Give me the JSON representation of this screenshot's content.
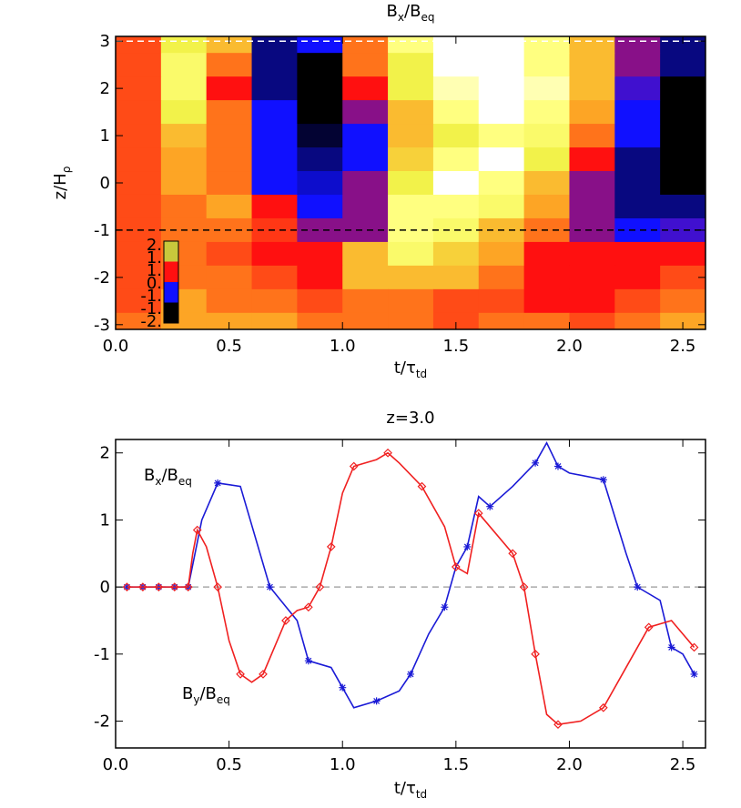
{
  "chart_data": [
    {
      "type": "heatmap",
      "title": [
        "B",
        "x",
        "/B",
        "eq"
      ],
      "xlabel": [
        "t/τ",
        "td"
      ],
      "ylabel": [
        "z/H",
        "ρ"
      ],
      "xlim": [
        0,
        2.6
      ],
      "ylim": [
        -3.1,
        3.1
      ],
      "xticks": [
        {
          "value": 0,
          "label": "0.0"
        },
        {
          "value": 0.5,
          "label": "0.5"
        },
        {
          "value": 1,
          "label": "1.0"
        },
        {
          "value": 1.5,
          "label": "1.5"
        },
        {
          "value": 2,
          "label": "2.0"
        },
        {
          "value": 2.5,
          "label": "2.5"
        }
      ],
      "yticks": [
        -3,
        -2,
        -1,
        0,
        1,
        2,
        3
      ],
      "x": [
        0.1,
        0.3,
        0.5,
        0.7,
        0.9,
        1.1,
        1.3,
        1.5,
        1.7,
        1.9,
        2.1,
        2.3,
        2.5
      ],
      "y": [
        3,
        2.5,
        2,
        1.5,
        1,
        0.5,
        0,
        -0.5,
        -1,
        -1.5,
        -2,
        -2.5,
        -3
      ],
      "values": [
        [
          0.3,
          1.5,
          1.0,
          -1.5,
          -1.0,
          0.5,
          2.0,
          2.5,
          2.5,
          2.0,
          1.0,
          -0.5,
          -1.5
        ],
        [
          0.3,
          1.8,
          0.5,
          -1.5,
          -2.0,
          0.5,
          1.5,
          2.5,
          2.5,
          2.0,
          1.0,
          -0.5,
          -1.5
        ],
        [
          0.3,
          1.8,
          0.0,
          -1.5,
          -2.0,
          0.0,
          1.5,
          2.2,
          2.5,
          2.2,
          1.0,
          -0.8,
          -2.0
        ],
        [
          0.3,
          1.5,
          0.5,
          -1.0,
          -2.0,
          -0.5,
          1.0,
          2.0,
          2.5,
          2.0,
          0.8,
          -1.0,
          -2.0
        ],
        [
          0.3,
          1.0,
          0.5,
          -1.0,
          -1.8,
          -1.0,
          1.0,
          1.5,
          2.0,
          1.8,
          0.5,
          -1.0,
          -2.0
        ],
        [
          0.3,
          0.8,
          0.5,
          -1.0,
          -1.5,
          -1.0,
          1.2,
          2.0,
          2.5,
          1.5,
          0.0,
          -1.5,
          -2.0
        ],
        [
          0.3,
          0.8,
          0.5,
          -1.0,
          -1.2,
          -0.5,
          1.5,
          2.5,
          2.0,
          1.0,
          -0.5,
          -1.5,
          -2.0
        ],
        [
          0.3,
          0.5,
          0.8,
          0.0,
          -1.0,
          -0.5,
          2.0,
          2.0,
          1.8,
          0.8,
          -0.5,
          -1.5,
          -1.5
        ],
        [
          0.3,
          0.5,
          0.5,
          0.2,
          -0.5,
          -0.5,
          2.0,
          1.8,
          1.0,
          0.5,
          -0.5,
          -1.0,
          -0.8
        ],
        [
          0.3,
          0.5,
          0.3,
          0.0,
          0.0,
          1.0,
          1.8,
          1.2,
          0.8,
          0.0,
          0.0,
          0.0,
          0.0
        ],
        [
          0.3,
          0.5,
          0.5,
          0.3,
          0.0,
          1.0,
          1.0,
          1.0,
          0.5,
          0.0,
          0.0,
          0.0,
          0.3
        ],
        [
          0.3,
          0.8,
          0.5,
          0.5,
          0.3,
          0.5,
          0.5,
          0.3,
          0.3,
          0.0,
          0.0,
          0.3,
          0.5
        ],
        [
          0.5,
          0.8,
          0.8,
          0.8,
          0.5,
          0.5,
          0.5,
          0.3,
          0.5,
          0.5,
          0.3,
          0.5,
          0.8
        ]
      ],
      "colormap": [
        [
          -2,
          "#000000"
        ],
        [
          -1,
          "#1010ff"
        ],
        [
          0,
          "#ff1010"
        ],
        [
          0.7,
          "#ff9a20"
        ],
        [
          1.5,
          "#f2f24a"
        ],
        [
          2,
          "#ffff80"
        ],
        [
          2.5,
          "#ffffff"
        ]
      ],
      "colorbar_colors": [
        "#c8c83c",
        "#ff1010",
        "#1010ff",
        "#000000"
      ],
      "colorbar_labels": [
        "2.",
        "1.",
        "1.",
        "0.",
        "-1.",
        "-1.",
        "-2."
      ],
      "hlines": [
        {
          "value": 3,
          "color": "#ffffff"
        },
        {
          "value": -1,
          "color": "#000000"
        }
      ]
    },
    {
      "type": "line",
      "title": [
        "z=3.0"
      ],
      "xlabel": [
        "t/τ",
        "td"
      ],
      "xlim": [
        0,
        2.6
      ],
      "ylim": [
        -2.4,
        2.2
      ],
      "xticks": [
        {
          "value": 0,
          "label": "0.0"
        },
        {
          "value": 0.5,
          "label": "0.5"
        },
        {
          "value": 1,
          "label": "1.0"
        },
        {
          "value": 1.5,
          "label": "1.5"
        },
        {
          "value": 2,
          "label": "2.0"
        },
        {
          "value": 2.5,
          "label": "2.5"
        }
      ],
      "yticks": [
        -2,
        -1,
        0,
        1,
        2
      ],
      "hlines": [
        {
          "value": 0,
          "color": "#aaaaaa"
        }
      ],
      "series": [
        {
          "name": [
            "B",
            "x",
            "/B",
            "eq"
          ],
          "color": "#1a1ad6",
          "marker": "star",
          "x": [
            0.05,
            0.12,
            0.19,
            0.26,
            0.32,
            0.38,
            0.45,
            0.55,
            0.68,
            0.8,
            0.85,
            0.95,
            1.0,
            1.05,
            1.15,
            1.25,
            1.3,
            1.38,
            1.45,
            1.5,
            1.55,
            1.6,
            1.65,
            1.75,
            1.85,
            1.9,
            1.95,
            2.0,
            2.15,
            2.25,
            2.3,
            2.4,
            2.45,
            2.5,
            2.55
          ],
          "values": [
            0,
            0,
            0,
            0,
            0,
            1.0,
            1.55,
            1.5,
            0,
            -0.5,
            -1.1,
            -1.2,
            -1.5,
            -1.8,
            -1.7,
            -1.55,
            -1.3,
            -0.7,
            -0.3,
            0.3,
            0.6,
            1.35,
            1.2,
            1.5,
            1.85,
            2.15,
            1.8,
            1.7,
            1.6,
            0.5,
            0,
            -0.2,
            -0.9,
            -1.0,
            -1.3
          ]
        },
        {
          "name": [
            "B",
            "y",
            "/B",
            "eq"
          ],
          "color": "#f02020",
          "marker": "diamond",
          "x": [
            0.05,
            0.12,
            0.19,
            0.26,
            0.32,
            0.34,
            0.36,
            0.4,
            0.45,
            0.5,
            0.55,
            0.6,
            0.65,
            0.7,
            0.75,
            0.8,
            0.85,
            0.9,
            0.95,
            1.0,
            1.05,
            1.15,
            1.2,
            1.25,
            1.35,
            1.45,
            1.5,
            1.55,
            1.6,
            1.65,
            1.75,
            1.8,
            1.85,
            1.9,
            1.95,
            2.05,
            2.15,
            2.25,
            2.35,
            2.45,
            2.55
          ],
          "values": [
            0,
            0,
            0,
            0,
            0,
            0.5,
            0.85,
            0.6,
            0,
            -0.8,
            -1.3,
            -1.42,
            -1.3,
            -0.9,
            -0.5,
            -0.35,
            -0.3,
            0,
            0.6,
            1.4,
            1.8,
            1.9,
            2.0,
            1.85,
            1.5,
            0.9,
            0.3,
            0.2,
            1.1,
            0.9,
            0.5,
            0,
            -1.0,
            -1.9,
            -2.05,
            -2.0,
            -1.8,
            -1.2,
            -0.6,
            -0.5,
            -0.9
          ]
        }
      ]
    }
  ]
}
